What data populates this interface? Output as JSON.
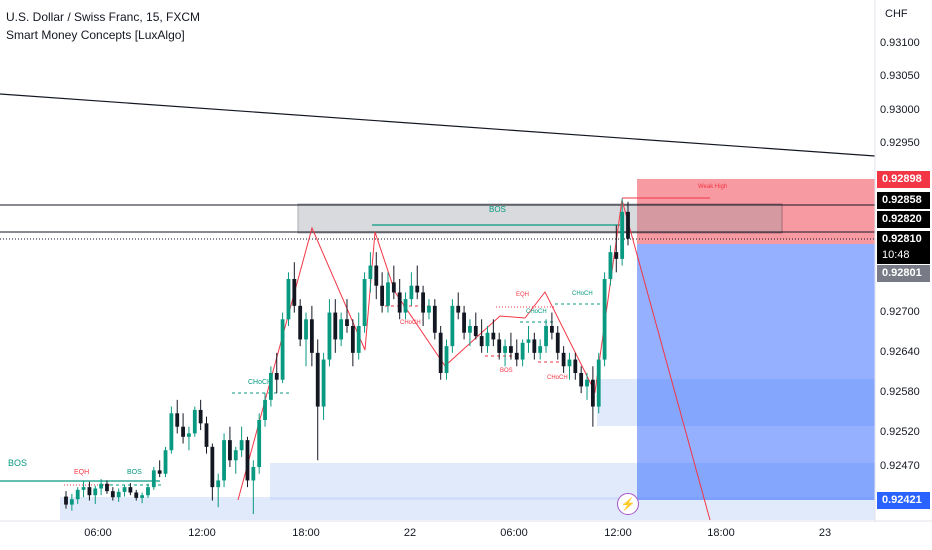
{
  "header": {
    "symbol_line": "U.S. Dollar / Swiss Franc, 15, FXCM",
    "indicator_line": "Smart Money Concepts [LuxAlgo]"
  },
  "price_axis": {
    "currency": "CHF",
    "labels": [
      "0.93100",
      "0.93050",
      "0.93000",
      "0.92950",
      "0.92700",
      "0.92640",
      "0.92580",
      "0.92520",
      "0.92470"
    ],
    "tags": [
      {
        "text": "0.92898",
        "bg": "#f23645"
      },
      {
        "text": "0.92858",
        "bg": "#000000"
      },
      {
        "text": "0.92820",
        "bg": "#000000"
      },
      {
        "text": "0.92810",
        "bg": "#000000"
      },
      {
        "text": "10:48",
        "bg": "#000000"
      },
      {
        "text": "0.92801",
        "bg": "#787b86"
      },
      {
        "text": "0.92421",
        "bg": "#2962ff"
      }
    ]
  },
  "time_axis": [
    "06:00",
    "12:00",
    "18:00",
    "22",
    "06:00",
    "12:00",
    "18:00",
    "23"
  ],
  "annotations": {
    "bos_left": "BOS",
    "eqh_left": "EQH",
    "bos_small": "BOS",
    "choch_1": "CHoCH",
    "bos_top": "BOS",
    "choch_red": "CHoCH",
    "eqh_mid": "EQH",
    "choch_mid": "CHoCH",
    "choch_right": "CHoCH",
    "bos_low": "BOS",
    "choch_low": "CHoCH",
    "weak_high": "Weak High"
  },
  "colors": {
    "up": "#089981",
    "down": "#131722",
    "bearish": "#f23645",
    "bullish": "#089981",
    "zone_blue": "#2962ff"
  },
  "indicator_icon": "lightning-icon",
  "chart_data": {
    "type": "candlestick",
    "symbol": "USDCHF",
    "ylim": [
      0.924,
      0.9315
    ],
    "last_price": 0.9281,
    "position": {
      "entry": 0.92801,
      "stop": 0.92898,
      "target": 0.92421
    },
    "ohlc": [
      [
        0.92426,
        0.92434,
        0.92408,
        0.92414
      ],
      [
        0.92414,
        0.9243,
        0.92405,
        0.92422
      ],
      [
        0.92422,
        0.9244,
        0.92415,
        0.92436
      ],
      [
        0.92436,
        0.9245,
        0.92425,
        0.9244
      ],
      [
        0.9244,
        0.92448,
        0.9242,
        0.92428
      ],
      [
        0.92428,
        0.92442,
        0.92415,
        0.92438
      ],
      [
        0.92438,
        0.92452,
        0.92428,
        0.92445
      ],
      [
        0.92445,
        0.9245,
        0.9243,
        0.92434
      ],
      [
        0.92434,
        0.9244,
        0.9242,
        0.92425
      ],
      [
        0.92425,
        0.92438,
        0.92418,
        0.92433
      ],
      [
        0.92433,
        0.92444,
        0.92426,
        0.9244
      ],
      [
        0.9244,
        0.92446,
        0.92428,
        0.92432
      ],
      [
        0.92432,
        0.92436,
        0.9242,
        0.92424
      ],
      [
        0.92424,
        0.92432,
        0.92416,
        0.92428
      ],
      [
        0.92428,
        0.92445,
        0.92424,
        0.9244
      ],
      [
        0.9244,
        0.9247,
        0.92436,
        0.92465
      ],
      [
        0.92465,
        0.9248,
        0.92455,
        0.9246
      ],
      [
        0.9246,
        0.925,
        0.92455,
        0.92495
      ],
      [
        0.92495,
        0.9256,
        0.9249,
        0.9255
      ],
      [
        0.9255,
        0.9257,
        0.9252,
        0.9253
      ],
      [
        0.9253,
        0.9255,
        0.92505,
        0.92515
      ],
      [
        0.92515,
        0.9253,
        0.92495,
        0.9252
      ],
      [
        0.9252,
        0.9256,
        0.92515,
        0.92555
      ],
      [
        0.92555,
        0.9257,
        0.92525,
        0.92535
      ],
      [
        0.92535,
        0.92545,
        0.9249,
        0.925
      ],
      [
        0.925,
        0.92505,
        0.9242,
        0.9244
      ],
      [
        0.9244,
        0.9246,
        0.9241,
        0.9245
      ],
      [
        0.9245,
        0.9252,
        0.9244,
        0.9251
      ],
      [
        0.9251,
        0.9253,
        0.9247,
        0.9248
      ],
      [
        0.9248,
        0.925,
        0.9246,
        0.92495
      ],
      [
        0.92495,
        0.9253,
        0.92485,
        0.9251
      ],
      [
        0.9251,
        0.92515,
        0.9244,
        0.9245
      ],
      [
        0.9245,
        0.9248,
        0.924,
        0.9247
      ],
      [
        0.9247,
        0.9255,
        0.9246,
        0.9254
      ],
      [
        0.9254,
        0.9258,
        0.9253,
        0.9257
      ],
      [
        0.9257,
        0.9262,
        0.9256,
        0.9261
      ],
      [
        0.9261,
        0.9264,
        0.9258,
        0.926
      ],
      [
        0.926,
        0.927,
        0.92595,
        0.9269
      ],
      [
        0.9269,
        0.9276,
        0.9268,
        0.9275
      ],
      [
        0.9275,
        0.92775,
        0.927,
        0.9271
      ],
      [
        0.9271,
        0.9272,
        0.9265,
        0.9266
      ],
      [
        0.9266,
        0.927,
        0.9262,
        0.9269
      ],
      [
        0.9269,
        0.9271,
        0.9262,
        0.9264
      ],
      [
        0.9264,
        0.9266,
        0.9248,
        0.9256
      ],
      [
        0.9256,
        0.9264,
        0.9254,
        0.9263
      ],
      [
        0.9263,
        0.9272,
        0.9262,
        0.927
      ],
      [
        0.927,
        0.9272,
        0.9264,
        0.9266
      ],
      [
        0.9266,
        0.927,
        0.9265,
        0.9269
      ],
      [
        0.9269,
        0.9272,
        0.9267,
        0.9268
      ],
      [
        0.9268,
        0.9269,
        0.9262,
        0.9264
      ],
      [
        0.9264,
        0.927,
        0.9263,
        0.9268
      ],
      [
        0.9268,
        0.9276,
        0.9267,
        0.9275
      ],
      [
        0.9275,
        0.9279,
        0.9273,
        0.9277
      ],
      [
        0.9277,
        0.9279,
        0.9272,
        0.9274
      ],
      [
        0.9274,
        0.9276,
        0.927,
        0.9271
      ],
      [
        0.9271,
        0.9276,
        0.927,
        0.92745
      ],
      [
        0.92745,
        0.9277,
        0.9272,
        0.9273
      ],
      [
        0.9273,
        0.9275,
        0.9269,
        0.927
      ],
      [
        0.927,
        0.9273,
        0.9269,
        0.9272
      ],
      [
        0.9272,
        0.9276,
        0.9271,
        0.9274
      ],
      [
        0.9274,
        0.9277,
        0.9272,
        0.9273
      ],
      [
        0.9273,
        0.9274,
        0.9268,
        0.927
      ],
      [
        0.927,
        0.9272,
        0.9269,
        0.9271
      ],
      [
        0.9271,
        0.9272,
        0.9266,
        0.9267
      ],
      [
        0.9267,
        0.9268,
        0.926,
        0.9261
      ],
      [
        0.9261,
        0.9266,
        0.926,
        0.9265
      ],
      [
        0.9265,
        0.9272,
        0.9264,
        0.9271
      ],
      [
        0.9271,
        0.9273,
        0.9269,
        0.927
      ],
      [
        0.927,
        0.9271,
        0.9266,
        0.9267
      ],
      [
        0.9267,
        0.9269,
        0.9265,
        0.9268
      ],
      [
        0.9268,
        0.927,
        0.9266,
        0.92665
      ],
      [
        0.92665,
        0.9269,
        0.9264,
        0.9265
      ],
      [
        0.9265,
        0.9268,
        0.9264,
        0.9267
      ],
      [
        0.9267,
        0.9269,
        0.9265,
        0.9266
      ],
      [
        0.9266,
        0.9267,
        0.9263,
        0.9264
      ],
      [
        0.9264,
        0.9266,
        0.9262,
        0.9265
      ],
      [
        0.9265,
        0.9267,
        0.9263,
        0.9264
      ],
      [
        0.9264,
        0.9266,
        0.9262,
        0.9263
      ],
      [
        0.9263,
        0.9266,
        0.9262,
        0.92655
      ],
      [
        0.92655,
        0.9268,
        0.9264,
        0.9266
      ],
      [
        0.9266,
        0.9267,
        0.9263,
        0.9264
      ],
      [
        0.9264,
        0.9266,
        0.9263,
        0.9265
      ],
      [
        0.9265,
        0.9269,
        0.9264,
        0.9268
      ],
      [
        0.9268,
        0.927,
        0.9266,
        0.9267
      ],
      [
        0.9267,
        0.9268,
        0.9263,
        0.9264
      ],
      [
        0.9264,
        0.9265,
        0.9261,
        0.9262
      ],
      [
        0.9262,
        0.9264,
        0.926,
        0.9263
      ],
      [
        0.9263,
        0.9264,
        0.926,
        0.9261
      ],
      [
        0.9261,
        0.9262,
        0.9258,
        0.9259
      ],
      [
        0.9259,
        0.9261,
        0.9257,
        0.926
      ],
      [
        0.926,
        0.9262,
        0.9253,
        0.9256
      ],
      [
        0.9256,
        0.9264,
        0.9255,
        0.9263
      ],
      [
        0.9263,
        0.9276,
        0.9262,
        0.9275
      ],
      [
        0.9275,
        0.928,
        0.9274,
        0.9279
      ],
      [
        0.9279,
        0.9283,
        0.9276,
        0.9278
      ],
      [
        0.9278,
        0.9287,
        0.9277,
        0.9285
      ],
      [
        0.9285,
        0.92865,
        0.928,
        0.9281
      ]
    ]
  }
}
